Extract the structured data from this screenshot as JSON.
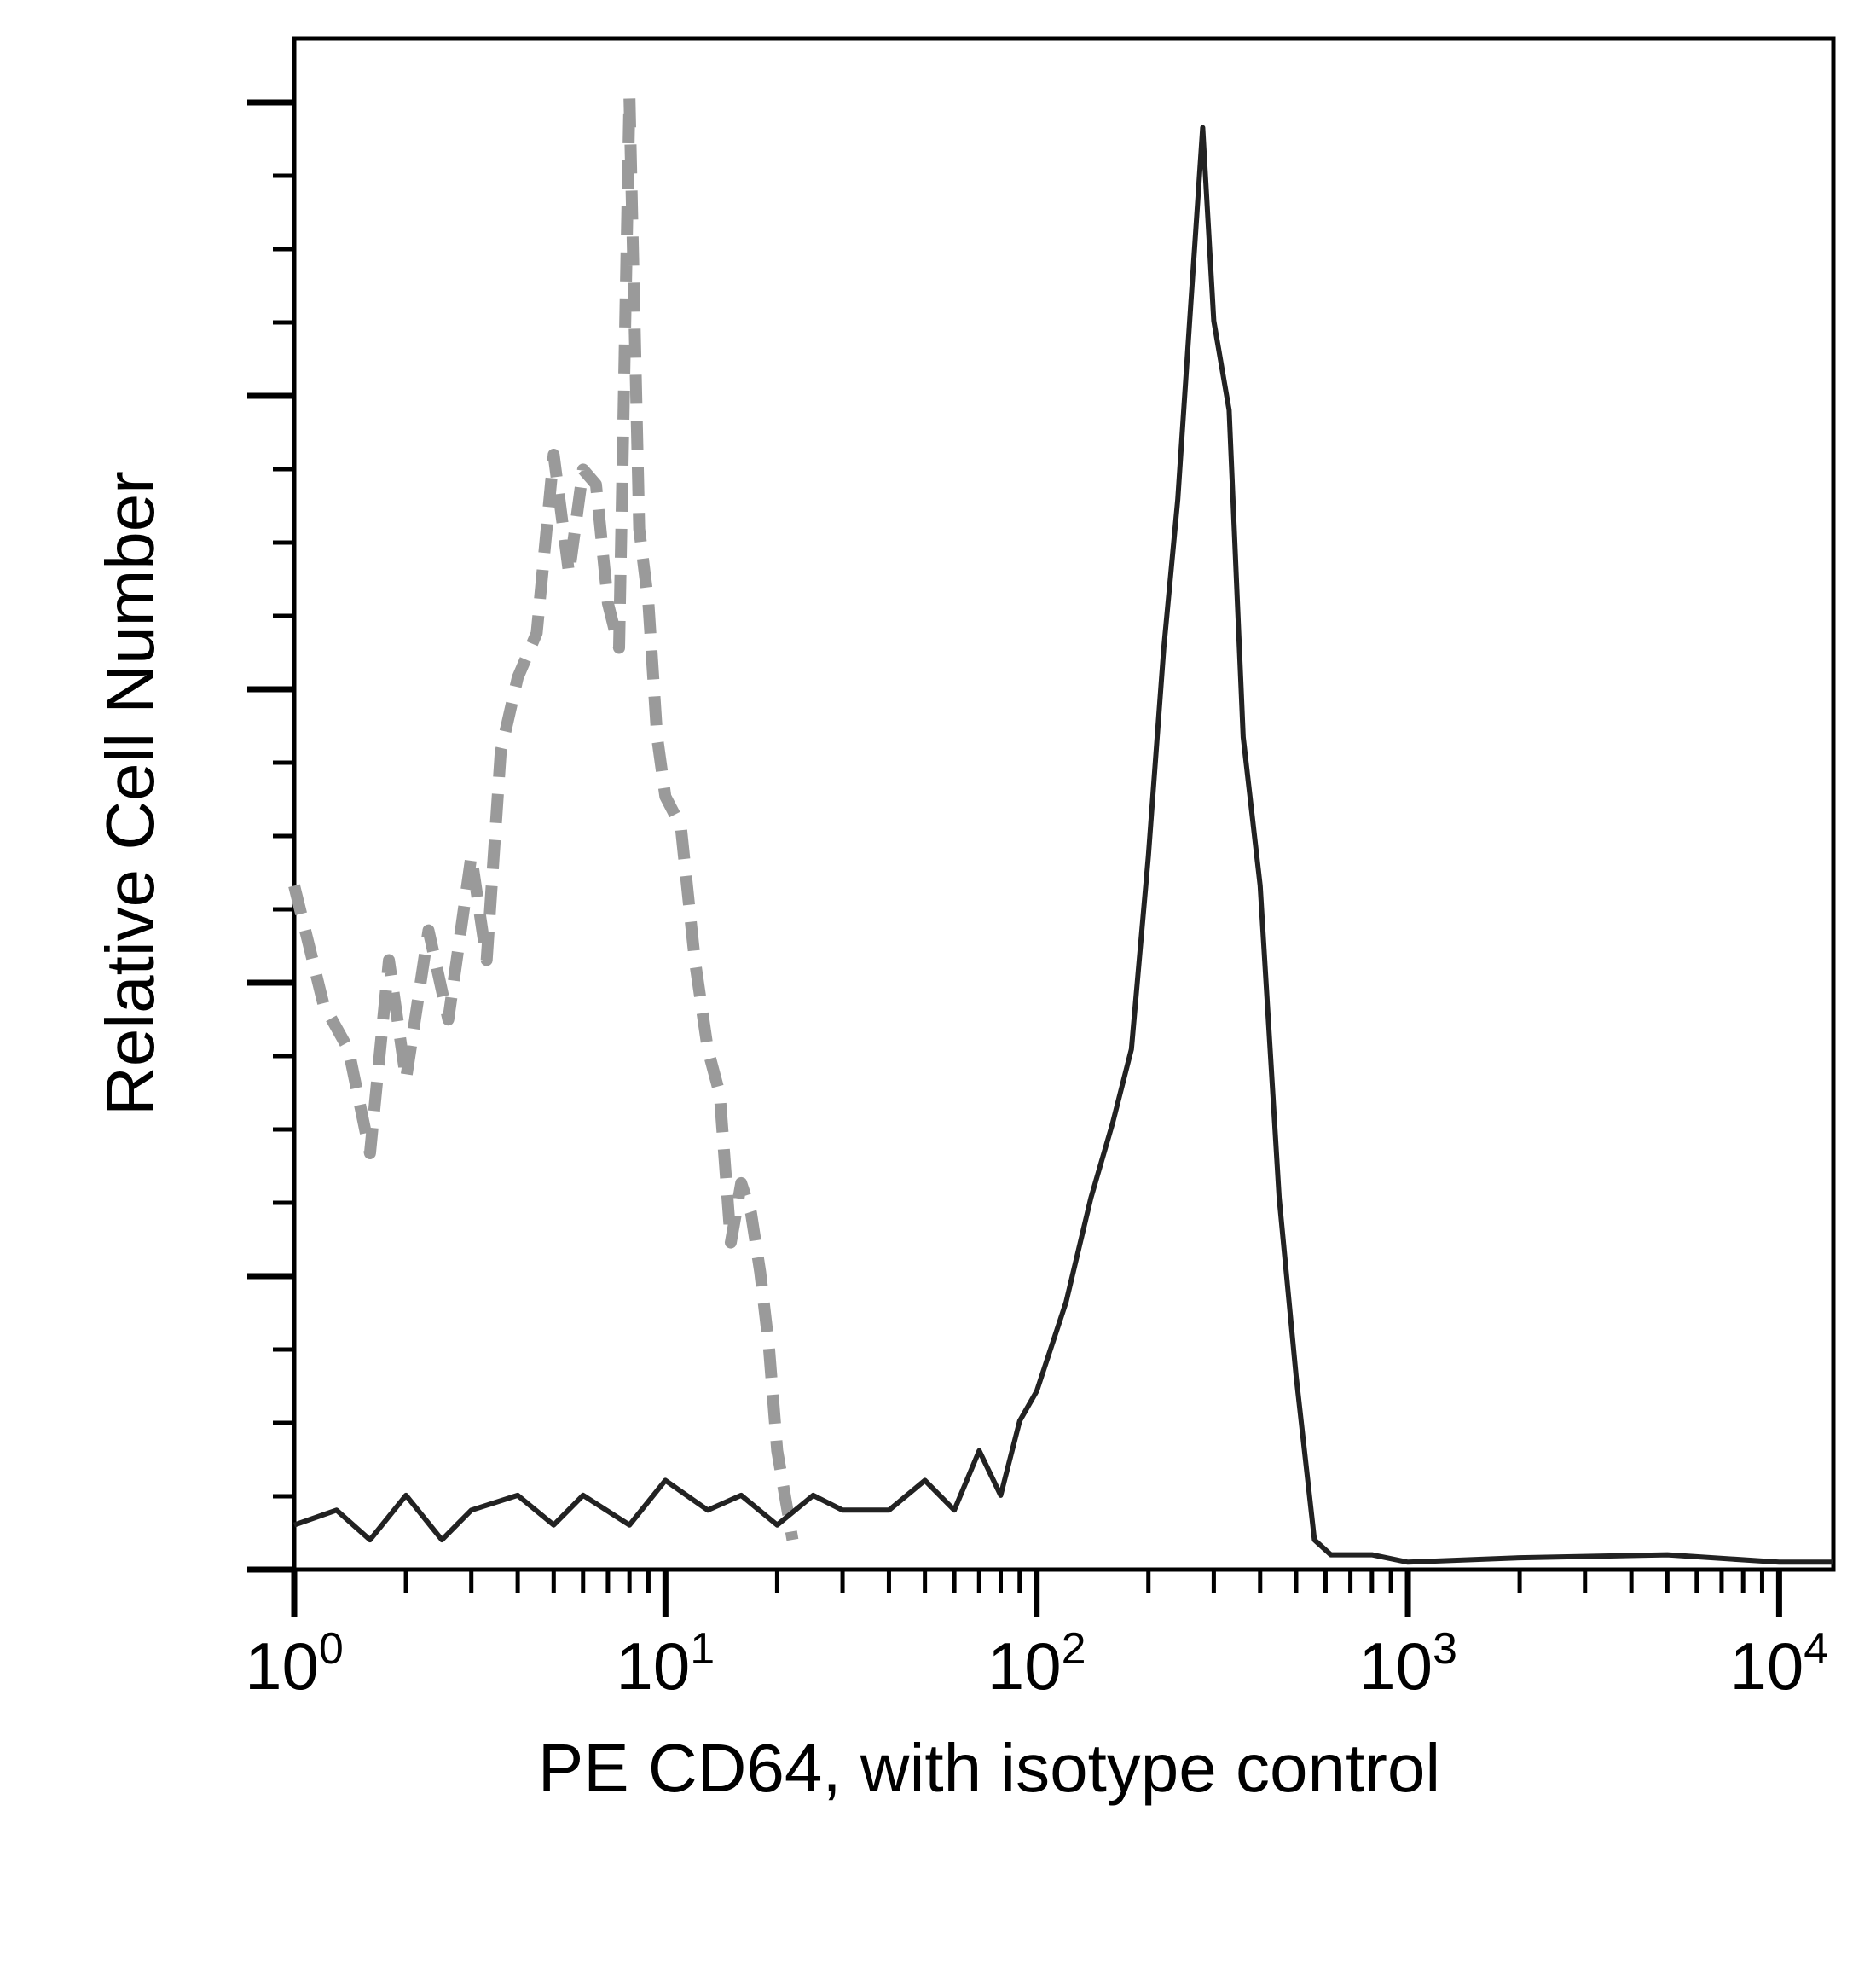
{
  "chart_data": {
    "type": "line",
    "title": "",
    "xlabel": "PE CD64, with isotype control",
    "ylabel": "Relative Cell Number",
    "x_scale": "log",
    "xlim": [
      1,
      14000
    ],
    "ylim": [
      0,
      1.03
    ],
    "x_ticks": [
      {
        "base": "10",
        "exp": "0",
        "value": 1
      },
      {
        "base": "10",
        "exp": "1",
        "value": 10
      },
      {
        "base": "10",
        "exp": "2",
        "value": 100
      },
      {
        "base": "10",
        "exp": "3",
        "value": 1000
      },
      {
        "base": "10",
        "exp": "4",
        "value": 10000
      }
    ],
    "grid": false,
    "legend": "none",
    "series": [
      {
        "style": "dashed",
        "color": "#9a9a9a",
        "x": [
          1.0,
          1.2,
          1.4,
          1.6,
          1.8,
          2.0,
          2.3,
          2.6,
          3.0,
          3.3,
          3.6,
          4.0,
          4.5,
          5.0,
          5.5,
          6.0,
          6.5,
          7.0,
          7.5,
          8.0,
          8.5,
          9.0,
          9.5,
          10.0,
          11.0,
          12.0,
          13.0,
          14.0,
          15.0,
          16.0,
          17.0,
          18.0,
          19.0,
          20.0,
          22.0
        ],
        "y": [
          0.46,
          0.38,
          0.35,
          0.28,
          0.41,
          0.33,
          0.43,
          0.37,
          0.48,
          0.41,
          0.55,
          0.6,
          0.63,
          0.75,
          0.67,
          0.74,
          0.73,
          0.65,
          0.62,
          0.99,
          0.7,
          0.65,
          0.56,
          0.52,
          0.5,
          0.41,
          0.35,
          0.32,
          0.22,
          0.26,
          0.24,
          0.2,
          0.15,
          0.08,
          0.02
        ]
      },
      {
        "style": "solid",
        "color": "#222222",
        "x": [
          1.0,
          1.3,
          1.6,
          2.0,
          2.5,
          3.0,
          4.0,
          5.0,
          6.0,
          8.0,
          10.0,
          13.0,
          16.0,
          20.0,
          25.0,
          30.0,
          40.0,
          50.0,
          60.0,
          70.0,
          80.0,
          90.0,
          100.0,
          120.0,
          140.0,
          160.0,
          180.0,
          200.0,
          220.0,
          240.0,
          260.0,
          280.0,
          300.0,
          330.0,
          360.0,
          400.0,
          450.0,
          500.0,
          560.0,
          620.0,
          700.0,
          800.0,
          1000.0,
          2000.0,
          5000.0,
          10000.0,
          14000.0
        ],
        "y": [
          0.03,
          0.04,
          0.02,
          0.05,
          0.02,
          0.04,
          0.05,
          0.03,
          0.05,
          0.03,
          0.06,
          0.04,
          0.05,
          0.03,
          0.05,
          0.04,
          0.04,
          0.06,
          0.04,
          0.08,
          0.05,
          0.1,
          0.12,
          0.18,
          0.25,
          0.3,
          0.35,
          0.48,
          0.62,
          0.72,
          0.85,
          0.97,
          0.84,
          0.78,
          0.56,
          0.46,
          0.25,
          0.13,
          0.02,
          0.01,
          0.01,
          0.01,
          0.005,
          0.008,
          0.01,
          0.005,
          0.005
        ]
      }
    ]
  }
}
